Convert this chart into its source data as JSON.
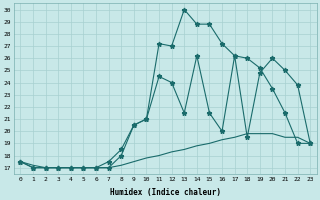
{
  "xlabel": "Humidex (Indice chaleur)",
  "background_color": "#c8e8e8",
  "grid_color": "#a8d0d0",
  "line_color": "#1a6b6b",
  "xlim": [
    -0.5,
    23.5
  ],
  "ylim": [
    16.5,
    30.5
  ],
  "xticks": [
    0,
    1,
    2,
    3,
    4,
    5,
    6,
    7,
    8,
    9,
    10,
    11,
    12,
    13,
    14,
    15,
    16,
    17,
    18,
    19,
    20,
    21,
    22,
    23
  ],
  "yticks": [
    17,
    18,
    19,
    20,
    21,
    22,
    23,
    24,
    25,
    26,
    27,
    28,
    29,
    30
  ],
  "line1_x": [
    0,
    1,
    2,
    3,
    4,
    5,
    6,
    7,
    8,
    9,
    10,
    11,
    12,
    13,
    14,
    15,
    16,
    17,
    18,
    19,
    20,
    21,
    22,
    23
  ],
  "line1_y": [
    17.5,
    17.0,
    17.0,
    17.0,
    17.0,
    17.0,
    17.0,
    17.0,
    18.0,
    20.5,
    21.0,
    27.2,
    27.0,
    30.0,
    28.8,
    28.8,
    27.2,
    26.2,
    26.0,
    25.2,
    23.5,
    21.5,
    19.0,
    19.0
  ],
  "line2_x": [
    0,
    1,
    2,
    3,
    4,
    5,
    6,
    7,
    8,
    9,
    10,
    11,
    12,
    13,
    14,
    15,
    16,
    17,
    18,
    19,
    20,
    21,
    22,
    23
  ],
  "line2_y": [
    17.5,
    17.0,
    17.0,
    17.0,
    17.0,
    17.0,
    17.0,
    17.5,
    18.5,
    20.5,
    21.0,
    24.5,
    24.0,
    21.5,
    26.2,
    21.5,
    20.0,
    26.2,
    19.5,
    24.8,
    26.0,
    25.0,
    23.8,
    19.0
  ],
  "line3_x": [
    0,
    1,
    2,
    3,
    4,
    5,
    6,
    7,
    8,
    9,
    10,
    11,
    12,
    13,
    14,
    15,
    16,
    17,
    18,
    19,
    20,
    21,
    22,
    23
  ],
  "line3_y": [
    17.5,
    17.2,
    17.0,
    17.0,
    17.0,
    17.0,
    17.0,
    17.0,
    17.2,
    17.5,
    17.8,
    18.0,
    18.3,
    18.5,
    18.8,
    19.0,
    19.3,
    19.5,
    19.8,
    19.8,
    19.8,
    19.5,
    19.5,
    19.0
  ]
}
